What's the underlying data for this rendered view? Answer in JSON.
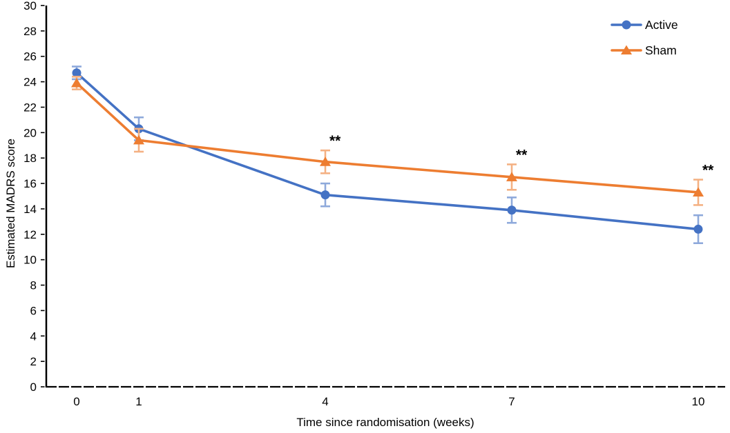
{
  "figure": {
    "background": "#ffffff",
    "axis_color": "#000000",
    "text_color": "#000000"
  },
  "chart_data": {
    "type": "line",
    "title": "",
    "xlabel": "Time since randomisation (weeks)",
    "ylabel": "Estimated MADRS score",
    "x": [
      0,
      1,
      4,
      7,
      10
    ],
    "x_tick_labels": [
      "0",
      "1",
      "4",
      "7",
      "10"
    ],
    "xlim": [
      -0.5,
      10.45
    ],
    "ylim": [
      0,
      30
    ],
    "y_tick_step": 2,
    "grid": false,
    "legend_position": "top-right",
    "series": [
      {
        "name": "Active",
        "color": "#4472C4",
        "error_color": "#8EA9DB",
        "marker": "circle",
        "values": [
          24.7,
          20.3,
          15.1,
          13.9,
          12.4
        ],
        "errors": [
          0.5,
          0.9,
          0.9,
          1.0,
          1.1
        ]
      },
      {
        "name": "Sham",
        "color": "#ED7D31",
        "error_color": "#F4B183",
        "marker": "triangle",
        "values": [
          23.9,
          19.4,
          17.7,
          16.5,
          15.3
        ],
        "errors": [
          0.5,
          0.9,
          0.9,
          1.0,
          1.0
        ]
      }
    ],
    "annotations": [
      {
        "label": "**",
        "series": "Sham",
        "x": 4
      },
      {
        "label": "**",
        "series": "Sham",
        "x": 7
      },
      {
        "label": "**",
        "series": "Sham",
        "x": 10
      }
    ]
  }
}
